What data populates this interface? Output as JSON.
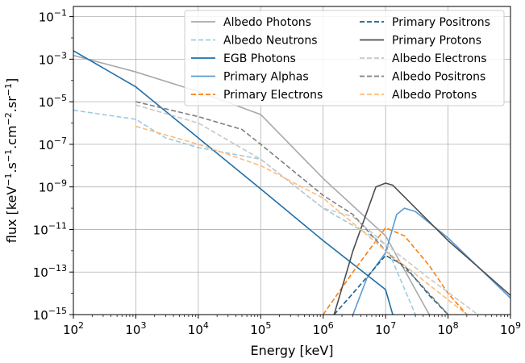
{
  "chart_data": {
    "type": "line",
    "title": "",
    "xlabel": "Energy [keV]",
    "ylabel_parts": [
      "flux [keV",
      "−1",
      ".s",
      "−1",
      ".cm",
      "−2",
      ".sr",
      "−1",
      "]"
    ],
    "xscale": "log",
    "yscale": "log",
    "xlim": [
      100,
      1000000000
    ],
    "ylim": [
      1e-15,
      0.3
    ],
    "grid": true,
    "legend_position": "top-right",
    "x_ticks": [
      {
        "base": "10",
        "exp": "2",
        "value": 100
      },
      {
        "base": "10",
        "exp": "3",
        "value": 1000
      },
      {
        "base": "10",
        "exp": "4",
        "value": 10000
      },
      {
        "base": "10",
        "exp": "5",
        "value": 100000
      },
      {
        "base": "10",
        "exp": "6",
        "value": 1000000
      },
      {
        "base": "10",
        "exp": "7",
        "value": 10000000
      },
      {
        "base": "10",
        "exp": "8",
        "value": 100000000
      },
      {
        "base": "10",
        "exp": "9",
        "value": 1000000000
      }
    ],
    "y_ticks": [
      {
        "base": "10",
        "exp": "−1",
        "value": 0.1
      },
      {
        "base": "10",
        "exp": "−3",
        "value": 0.001
      },
      {
        "base": "10",
        "exp": "−5",
        "value": 1e-05
      },
      {
        "base": "10",
        "exp": "−7",
        "value": 1e-07
      },
      {
        "base": "10",
        "exp": "−9",
        "value": 1e-09
      },
      {
        "base": "10",
        "exp": "−11",
        "value": 1e-11
      },
      {
        "base": "10",
        "exp": "−13",
        "value": 1e-13
      },
      {
        "base": "10",
        "exp": "−15",
        "value": 1e-15
      }
    ],
    "series": [
      {
        "name": "Albedo Photons",
        "color": "#a9a9a9",
        "dash": "solid",
        "x": [
          100,
          1000,
          10000,
          100000,
          1000000,
          10000000,
          50000000
        ],
        "y": [
          0.0015,
          0.00025,
          3e-05,
          2.5e-06,
          2.5e-09,
          5e-12,
          1e-15
        ]
      },
      {
        "name": "Albedo Neutrons",
        "color": "#9ecae1",
        "dash": "dashed",
        "x": [
          100,
          1000,
          3000,
          10000,
          100000,
          1000000,
          10000000,
          30000000
        ],
        "y": [
          4e-06,
          1.5e-06,
          2e-07,
          7e-08,
          2e-08,
          1e-10,
          2e-12,
          1e-15
        ]
      },
      {
        "name": "EGB Photons",
        "color": "#1f6fa8",
        "dash": "solid",
        "x": [
          100,
          1000,
          10000,
          100000,
          1000000,
          10000000,
          13000000
        ],
        "y": [
          0.0025,
          5e-05,
          2e-07,
          8e-10,
          3e-12,
          1.5e-14,
          1e-15
        ]
      },
      {
        "name": "Primary Alphas",
        "color": "#5b9bd5",
        "dash": "solid",
        "x": [
          3000000,
          5000000,
          10000000,
          15000000,
          20000000,
          30000000,
          100000000,
          1000000000
        ],
        "y": [
          1e-15,
          5e-14,
          8e-13,
          5e-11,
          1e-10,
          7e-11,
          4e-12,
          6e-15
        ]
      },
      {
        "name": "Primary Electrons",
        "color": "#ff7f0e",
        "dash": "dashed",
        "x": [
          1000000,
          3000000,
          10000000,
          20000000,
          50000000,
          100000000,
          200000000
        ],
        "y": [
          1e-15,
          1e-13,
          1.2e-11,
          5e-12,
          2e-13,
          1e-14,
          1e-15
        ]
      },
      {
        "name": "Primary Positrons",
        "color": "#1f5f8b",
        "dash": "dashed",
        "x": [
          1500000,
          3000000,
          10000000,
          20000000,
          50000000,
          100000000
        ],
        "y": [
          1e-15,
          1e-14,
          6e-13,
          2e-13,
          8e-15,
          1e-15
        ]
      },
      {
        "name": "Primary Protons",
        "color": "#4d4d4d",
        "dash": "solid",
        "x": [
          1500000,
          3000000,
          7000000,
          10000000,
          13000000,
          100000000,
          1000000000
        ],
        "y": [
          1e-15,
          1e-12,
          1e-09,
          1.5e-09,
          1.2e-09,
          3e-12,
          8e-15
        ]
      },
      {
        "name": "Albedo Electrons",
        "color": "#c8c8c8",
        "dash": "dashed",
        "x": [
          1000,
          10000,
          100000,
          1000000,
          3000000,
          10000000,
          50000000,
          300000000
        ],
        "y": [
          7e-06,
          1e-06,
          2e-08,
          1e-10,
          4e-11,
          2e-12,
          5e-14,
          1e-15
        ]
      },
      {
        "name": "Albedo Positrons",
        "color": "#7f7f7f",
        "dash": "dashed",
        "x": [
          1000,
          10000,
          50000,
          100000,
          1000000,
          3000000,
          10000000,
          30000000,
          100000000
        ],
        "y": [
          1e-05,
          2e-06,
          5e-07,
          1e-07,
          4e-10,
          5e-11,
          1e-12,
          5e-14,
          1e-15
        ]
      },
      {
        "name": "Albedo Protons",
        "color": "#ffbb78",
        "dash": "dashed",
        "x": [
          1000,
          10000,
          100000,
          1000000,
          3000000,
          10000000,
          30000000,
          100000000,
          200000000
        ],
        "y": [
          7e-07,
          1e-07,
          1e-08,
          3e-10,
          2e-11,
          1e-12,
          8e-14,
          5e-15,
          1e-15
        ]
      }
    ]
  }
}
